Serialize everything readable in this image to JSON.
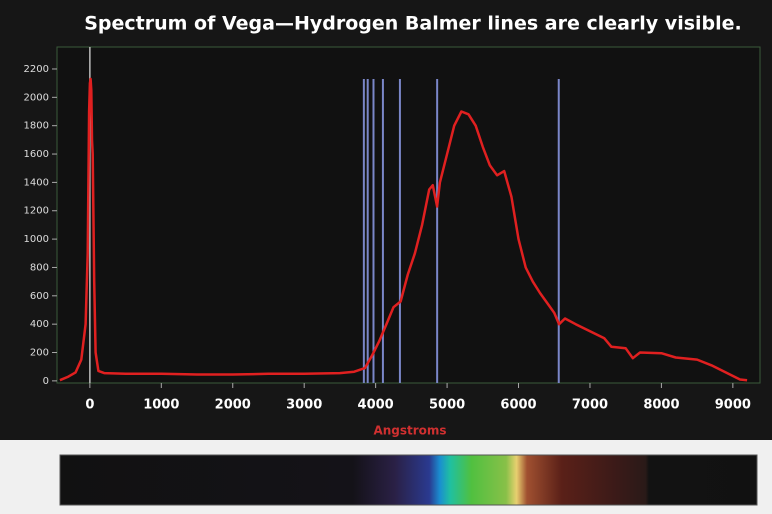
{
  "chart_data": {
    "type": "line",
    "title": "Spectrum of Vega—Hydrogen Balmer lines are clearly visible.",
    "x_label": "Angstroms",
    "xlim": [
      -460,
      9380
    ],
    "ylim": [
      -15,
      2355
    ],
    "xticks": [
      0,
      1000,
      2000,
      3000,
      4000,
      5000,
      6000,
      7000,
      8000,
      9000
    ],
    "yticks": [
      0,
      200,
      400,
      600,
      800,
      1000,
      1200,
      1400,
      1600,
      1800,
      2000,
      2200
    ],
    "balmer_lines": {
      "color": "#7a86c8",
      "x": [
        3835,
        3889,
        3970,
        4102,
        4340,
        4861,
        6563
      ]
    },
    "series": [
      {
        "color": "#e02020",
        "x": [
          -420,
          -300,
          -200,
          -120,
          -60,
          -30,
          -10,
          0,
          10,
          20,
          30,
          40,
          60,
          80,
          120,
          200,
          500,
          1000,
          1500,
          2000,
          2500,
          3000,
          3500,
          3700,
          3850,
          3950,
          4050,
          4150,
          4250,
          4350,
          4450,
          4550,
          4650,
          4750,
          4800,
          4860,
          4900,
          5000,
          5100,
          5200,
          5300,
          5400,
          5500,
          5600,
          5700,
          5800,
          5900,
          6000,
          6100,
          6200,
          6300,
          6400,
          6500,
          6568,
          6650,
          6800,
          7000,
          7200,
          7300,
          7500,
          7600,
          7700,
          8000,
          8200,
          8500,
          8700,
          8900,
          9100,
          9200
        ],
        "values": [
          5,
          30,
          60,
          150,
          400,
          900,
          1900,
          2100,
          2130,
          2050,
          1700,
          1600,
          700,
          200,
          70,
          55,
          50,
          50,
          45,
          45,
          50,
          50,
          55,
          65,
          90,
          180,
          280,
          400,
          520,
          560,
          750,
          900,
          1100,
          1350,
          1380,
          1230,
          1400,
          1600,
          1800,
          1900,
          1880,
          1800,
          1650,
          1520,
          1450,
          1480,
          1300,
          1000,
          800,
          700,
          620,
          550,
          480,
          400,
          440,
          400,
          350,
          300,
          240,
          230,
          160,
          200,
          195,
          165,
          150,
          110,
          60,
          10,
          5
        ]
      }
    ]
  }
}
